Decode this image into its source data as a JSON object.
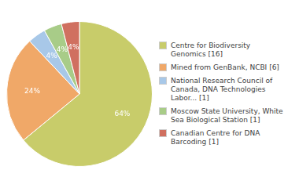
{
  "chart_data": {
    "type": "pie",
    "categories": [
      "Centre for Biodiversity\nGenomics [16]",
      "Mined from GenBank, NCBI [6]",
      "National Research Council of\nCanada, DNA Technologies\nLabor... [1]",
      "Moscow State University, White\nSea Biological Station [1]",
      "Canadian Centre for DNA\nBarcoding [1]"
    ],
    "values": [
      64,
      24,
      4,
      4,
      4
    ],
    "value_labels": [
      "64%",
      "24%",
      "4%",
      "4%",
      "4%"
    ],
    "colors": [
      "#c8cc6a",
      "#f0a868",
      "#a8c8e8",
      "#a8cc88",
      "#d07060"
    ],
    "data_labels": true,
    "legend": "right"
  }
}
